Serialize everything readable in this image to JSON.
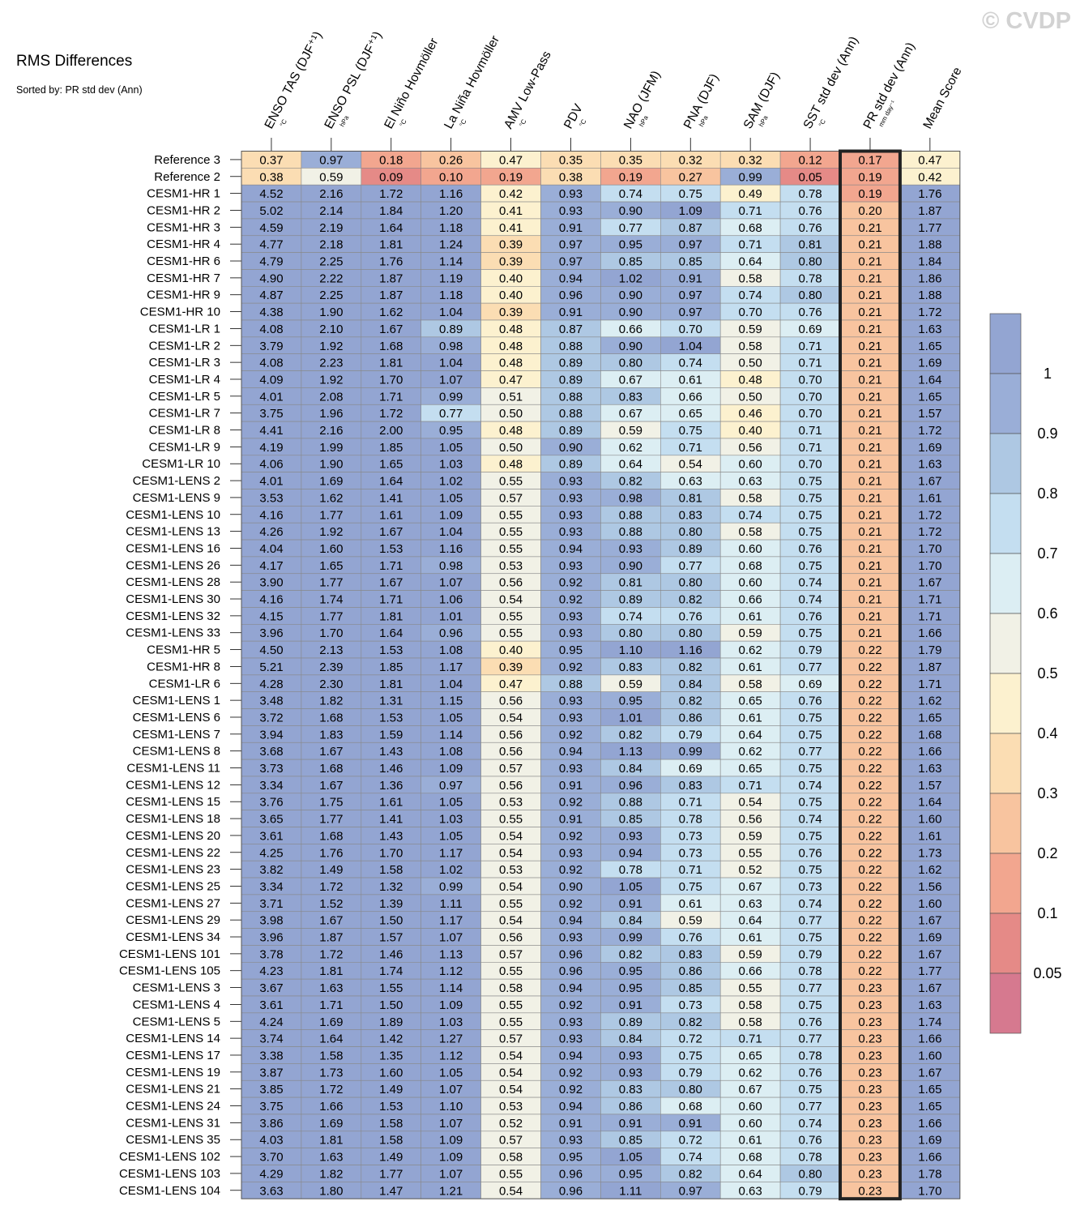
{
  "watermark": "© CVDP",
  "chart_data": {
    "type": "heatmap",
    "title": "RMS Differences",
    "subtitle": "Sorted by: PR std dev (Ann)",
    "columns": [
      {
        "name": "ENSO TAS (DJF⁺¹)",
        "unit": "°C"
      },
      {
        "name": "ENSO PSL (DJF⁺¹)",
        "unit": "hPa"
      },
      {
        "name": "El Niño Hovmöller",
        "unit": "°C"
      },
      {
        "name": "La Niña Hovmöller",
        "unit": "°C"
      },
      {
        "name": "AMV Low-Pass",
        "unit": "°C"
      },
      {
        "name": "PDV",
        "unit": "°C"
      },
      {
        "name": "NAO (JFM)",
        "unit": "hPa"
      },
      {
        "name": "PNA (DJF)",
        "unit": "hPa"
      },
      {
        "name": "SAM (DJF)",
        "unit": "hPa"
      },
      {
        "name": "SST std dev (Ann)",
        "unit": "°C"
      },
      {
        "name": "PR std dev (Ann)",
        "unit": "mm day⁻¹"
      },
      {
        "name": "Mean Score",
        "unit": ""
      }
    ],
    "highlighted_column": "PR std dev (Ann)",
    "rows": [
      {
        "name": "Reference 3",
        "values": [
          0.37,
          0.97,
          0.18,
          0.26,
          0.47,
          0.35,
          0.35,
          0.32,
          0.32,
          0.12,
          0.17,
          0.47
        ]
      },
      {
        "name": "Reference 2",
        "values": [
          0.38,
          0.59,
          0.09,
          0.1,
          0.19,
          0.38,
          0.19,
          0.27,
          0.99,
          0.05,
          0.19,
          0.42
        ]
      },
      {
        "name": "CESM1-HR 1",
        "values": [
          4.52,
          2.16,
          1.72,
          1.16,
          0.42,
          0.93,
          0.74,
          0.75,
          0.49,
          0.78,
          0.19,
          1.76
        ]
      },
      {
        "name": "CESM1-HR 2",
        "values": [
          5.02,
          2.14,
          1.84,
          1.2,
          0.41,
          0.93,
          0.9,
          1.09,
          0.71,
          0.76,
          0.2,
          1.87
        ]
      },
      {
        "name": "CESM1-HR 3",
        "values": [
          4.59,
          2.19,
          1.64,
          1.18,
          0.41,
          0.91,
          0.77,
          0.87,
          0.68,
          0.76,
          0.21,
          1.77
        ]
      },
      {
        "name": "CESM1-HR 4",
        "values": [
          4.77,
          2.18,
          1.81,
          1.24,
          0.39,
          0.97,
          0.95,
          0.97,
          0.71,
          0.81,
          0.21,
          1.88
        ]
      },
      {
        "name": "CESM1-HR 6",
        "values": [
          4.79,
          2.25,
          1.76,
          1.14,
          0.39,
          0.97,
          0.85,
          0.85,
          0.64,
          0.8,
          0.21,
          1.84
        ]
      },
      {
        "name": "CESM1-HR 7",
        "values": [
          4.9,
          2.22,
          1.87,
          1.19,
          0.4,
          0.94,
          1.02,
          0.91,
          0.58,
          0.78,
          0.21,
          1.86
        ]
      },
      {
        "name": "CESM1-HR 9",
        "values": [
          4.87,
          2.25,
          1.87,
          1.18,
          0.4,
          0.96,
          0.9,
          0.97,
          0.74,
          0.8,
          0.21,
          1.88
        ]
      },
      {
        "name": "CESM1-HR 10",
        "values": [
          4.38,
          1.9,
          1.62,
          1.04,
          0.39,
          0.91,
          0.9,
          0.97,
          0.7,
          0.76,
          0.21,
          1.72
        ]
      },
      {
        "name": "CESM1-LR 1",
        "values": [
          4.08,
          2.1,
          1.67,
          0.89,
          0.48,
          0.87,
          0.66,
          0.7,
          0.59,
          0.69,
          0.21,
          1.63
        ]
      },
      {
        "name": "CESM1-LR 2",
        "values": [
          3.79,
          1.92,
          1.68,
          0.98,
          0.48,
          0.88,
          0.9,
          1.04,
          0.58,
          0.71,
          0.21,
          1.65
        ]
      },
      {
        "name": "CESM1-LR 3",
        "values": [
          4.08,
          2.23,
          1.81,
          1.04,
          0.48,
          0.89,
          0.8,
          0.74,
          0.5,
          0.71,
          0.21,
          1.69
        ]
      },
      {
        "name": "CESM1-LR 4",
        "values": [
          4.09,
          1.92,
          1.7,
          1.07,
          0.47,
          0.89,
          0.67,
          0.61,
          0.48,
          0.7,
          0.21,
          1.64
        ]
      },
      {
        "name": "CESM1-LR 5",
        "values": [
          4.01,
          2.08,
          1.71,
          0.99,
          0.51,
          0.88,
          0.83,
          0.66,
          0.5,
          0.7,
          0.21,
          1.65
        ]
      },
      {
        "name": "CESM1-LR 7",
        "values": [
          3.75,
          1.96,
          1.72,
          0.77,
          0.5,
          0.88,
          0.67,
          0.65,
          0.46,
          0.7,
          0.21,
          1.57
        ]
      },
      {
        "name": "CESM1-LR 8",
        "values": [
          4.41,
          2.16,
          2.0,
          0.95,
          0.48,
          0.89,
          0.59,
          0.75,
          0.4,
          0.71,
          0.21,
          1.72
        ]
      },
      {
        "name": "CESM1-LR 9",
        "values": [
          4.19,
          1.99,
          1.85,
          1.05,
          0.5,
          0.9,
          0.62,
          0.71,
          0.56,
          0.71,
          0.21,
          1.69
        ]
      },
      {
        "name": "CESM1-LR 10",
        "values": [
          4.06,
          1.9,
          1.65,
          1.03,
          0.48,
          0.89,
          0.64,
          0.54,
          0.6,
          0.7,
          0.21,
          1.63
        ]
      },
      {
        "name": "CESM1-LENS 2",
        "values": [
          4.01,
          1.69,
          1.64,
          1.02,
          0.55,
          0.93,
          0.82,
          0.63,
          0.63,
          0.75,
          0.21,
          1.67
        ]
      },
      {
        "name": "CESM1-LENS 9",
        "values": [
          3.53,
          1.62,
          1.41,
          1.05,
          0.57,
          0.93,
          0.98,
          0.81,
          0.58,
          0.75,
          0.21,
          1.61
        ]
      },
      {
        "name": "CESM1-LENS 10",
        "values": [
          4.16,
          1.77,
          1.61,
          1.09,
          0.55,
          0.93,
          0.88,
          0.83,
          0.74,
          0.75,
          0.21,
          1.72
        ]
      },
      {
        "name": "CESM1-LENS 13",
        "values": [
          4.26,
          1.92,
          1.67,
          1.04,
          0.55,
          0.93,
          0.88,
          0.8,
          0.58,
          0.75,
          0.21,
          1.72
        ]
      },
      {
        "name": "CESM1-LENS 16",
        "values": [
          4.04,
          1.6,
          1.53,
          1.16,
          0.55,
          0.94,
          0.93,
          0.89,
          0.6,
          0.76,
          0.21,
          1.7
        ]
      },
      {
        "name": "CESM1-LENS 26",
        "values": [
          4.17,
          1.65,
          1.71,
          0.98,
          0.53,
          0.93,
          0.9,
          0.77,
          0.68,
          0.75,
          0.21,
          1.7
        ]
      },
      {
        "name": "CESM1-LENS 28",
        "values": [
          3.9,
          1.77,
          1.67,
          1.07,
          0.56,
          0.92,
          0.81,
          0.8,
          0.6,
          0.74,
          0.21,
          1.67
        ]
      },
      {
        "name": "CESM1-LENS 30",
        "values": [
          4.16,
          1.74,
          1.71,
          1.06,
          0.54,
          0.92,
          0.89,
          0.82,
          0.66,
          0.74,
          0.21,
          1.71
        ]
      },
      {
        "name": "CESM1-LENS 32",
        "values": [
          4.15,
          1.77,
          1.81,
          1.01,
          0.55,
          0.93,
          0.74,
          0.76,
          0.61,
          0.76,
          0.21,
          1.71
        ]
      },
      {
        "name": "CESM1-LENS 33",
        "values": [
          3.96,
          1.7,
          1.64,
          0.96,
          0.55,
          0.93,
          0.8,
          0.8,
          0.59,
          0.75,
          0.21,
          1.66
        ]
      },
      {
        "name": "CESM1-HR 5",
        "values": [
          4.5,
          2.13,
          1.53,
          1.08,
          0.4,
          0.95,
          1.1,
          1.16,
          0.62,
          0.79,
          0.22,
          1.79
        ]
      },
      {
        "name": "CESM1-HR 8",
        "values": [
          5.21,
          2.39,
          1.85,
          1.17,
          0.39,
          0.92,
          0.83,
          0.82,
          0.61,
          0.77,
          0.22,
          1.87
        ]
      },
      {
        "name": "CESM1-LR 6",
        "values": [
          4.28,
          2.3,
          1.81,
          1.04,
          0.47,
          0.88,
          0.59,
          0.84,
          0.58,
          0.69,
          0.22,
          1.71
        ]
      },
      {
        "name": "CESM1-LENS 1",
        "values": [
          3.48,
          1.82,
          1.31,
          1.15,
          0.56,
          0.93,
          0.95,
          0.82,
          0.65,
          0.76,
          0.22,
          1.62
        ]
      },
      {
        "name": "CESM1-LENS 6",
        "values": [
          3.72,
          1.68,
          1.53,
          1.05,
          0.54,
          0.93,
          1.01,
          0.86,
          0.61,
          0.75,
          0.22,
          1.65
        ]
      },
      {
        "name": "CESM1-LENS 7",
        "values": [
          3.94,
          1.83,
          1.59,
          1.14,
          0.56,
          0.92,
          0.82,
          0.79,
          0.64,
          0.75,
          0.22,
          1.68
        ]
      },
      {
        "name": "CESM1-LENS 8",
        "values": [
          3.68,
          1.67,
          1.43,
          1.08,
          0.56,
          0.94,
          1.13,
          0.99,
          0.62,
          0.77,
          0.22,
          1.66
        ]
      },
      {
        "name": "CESM1-LENS 11",
        "values": [
          3.73,
          1.68,
          1.46,
          1.09,
          0.57,
          0.93,
          0.84,
          0.69,
          0.65,
          0.75,
          0.22,
          1.63
        ]
      },
      {
        "name": "CESM1-LENS 12",
        "values": [
          3.34,
          1.67,
          1.36,
          0.97,
          0.56,
          0.91,
          0.96,
          0.83,
          0.71,
          0.74,
          0.22,
          1.57
        ]
      },
      {
        "name": "CESM1-LENS 15",
        "values": [
          3.76,
          1.75,
          1.61,
          1.05,
          0.53,
          0.92,
          0.88,
          0.71,
          0.54,
          0.75,
          0.22,
          1.64
        ]
      },
      {
        "name": "CESM1-LENS 18",
        "values": [
          3.65,
          1.77,
          1.41,
          1.03,
          0.55,
          0.91,
          0.85,
          0.78,
          0.56,
          0.74,
          0.22,
          1.6
        ]
      },
      {
        "name": "CESM1-LENS 20",
        "values": [
          3.61,
          1.68,
          1.43,
          1.05,
          0.54,
          0.92,
          0.93,
          0.73,
          0.59,
          0.75,
          0.22,
          1.61
        ]
      },
      {
        "name": "CESM1-LENS 22",
        "values": [
          4.25,
          1.76,
          1.7,
          1.17,
          0.54,
          0.93,
          0.94,
          0.73,
          0.55,
          0.76,
          0.22,
          1.73
        ]
      },
      {
        "name": "CESM1-LENS 23",
        "values": [
          3.82,
          1.49,
          1.58,
          1.02,
          0.53,
          0.92,
          0.78,
          0.71,
          0.52,
          0.75,
          0.22,
          1.62
        ]
      },
      {
        "name": "CESM1-LENS 25",
        "values": [
          3.34,
          1.72,
          1.32,
          0.99,
          0.54,
          0.9,
          1.05,
          0.75,
          0.67,
          0.73,
          0.22,
          1.56
        ]
      },
      {
        "name": "CESM1-LENS 27",
        "values": [
          3.71,
          1.52,
          1.39,
          1.11,
          0.55,
          0.92,
          0.91,
          0.61,
          0.63,
          0.74,
          0.22,
          1.6
        ]
      },
      {
        "name": "CESM1-LENS 29",
        "values": [
          3.98,
          1.67,
          1.5,
          1.17,
          0.54,
          0.94,
          0.84,
          0.59,
          0.64,
          0.77,
          0.22,
          1.67
        ]
      },
      {
        "name": "CESM1-LENS 34",
        "values": [
          3.96,
          1.87,
          1.57,
          1.07,
          0.56,
          0.93,
          0.99,
          0.76,
          0.61,
          0.75,
          0.22,
          1.69
        ]
      },
      {
        "name": "CESM1-LENS 101",
        "values": [
          3.78,
          1.72,
          1.46,
          1.13,
          0.57,
          0.96,
          0.82,
          0.83,
          0.59,
          0.79,
          0.22,
          1.67
        ]
      },
      {
        "name": "CESM1-LENS 105",
        "values": [
          4.23,
          1.81,
          1.74,
          1.12,
          0.55,
          0.96,
          0.95,
          0.86,
          0.66,
          0.78,
          0.22,
          1.77
        ]
      },
      {
        "name": "CESM1-LENS 3",
        "values": [
          3.67,
          1.63,
          1.55,
          1.14,
          0.58,
          0.94,
          0.95,
          0.85,
          0.55,
          0.77,
          0.23,
          1.67
        ]
      },
      {
        "name": "CESM1-LENS 4",
        "values": [
          3.61,
          1.71,
          1.5,
          1.09,
          0.55,
          0.92,
          0.91,
          0.73,
          0.58,
          0.75,
          0.23,
          1.63
        ]
      },
      {
        "name": "CESM1-LENS 5",
        "values": [
          4.24,
          1.69,
          1.89,
          1.03,
          0.55,
          0.93,
          0.89,
          0.82,
          0.58,
          0.76,
          0.23,
          1.74
        ]
      },
      {
        "name": "CESM1-LENS 14",
        "values": [
          3.74,
          1.64,
          1.42,
          1.27,
          0.57,
          0.93,
          0.84,
          0.72,
          0.71,
          0.77,
          0.23,
          1.66
        ]
      },
      {
        "name": "CESM1-LENS 17",
        "values": [
          3.38,
          1.58,
          1.35,
          1.12,
          0.54,
          0.94,
          0.93,
          0.75,
          0.65,
          0.78,
          0.23,
          1.6
        ]
      },
      {
        "name": "CESM1-LENS 19",
        "values": [
          3.87,
          1.73,
          1.6,
          1.05,
          0.54,
          0.92,
          0.93,
          0.79,
          0.62,
          0.76,
          0.23,
          1.67
        ]
      },
      {
        "name": "CESM1-LENS 21",
        "values": [
          3.85,
          1.72,
          1.49,
          1.07,
          0.54,
          0.92,
          0.83,
          0.8,
          0.67,
          0.75,
          0.23,
          1.65
        ]
      },
      {
        "name": "CESM1-LENS 24",
        "values": [
          3.75,
          1.66,
          1.53,
          1.1,
          0.53,
          0.94,
          0.86,
          0.68,
          0.6,
          0.77,
          0.23,
          1.65
        ]
      },
      {
        "name": "CESM1-LENS 31",
        "values": [
          3.86,
          1.69,
          1.58,
          1.07,
          0.52,
          0.91,
          0.91,
          0.91,
          0.6,
          0.74,
          0.23,
          1.66
        ]
      },
      {
        "name": "CESM1-LENS 35",
        "values": [
          4.03,
          1.81,
          1.58,
          1.09,
          0.57,
          0.93,
          0.85,
          0.72,
          0.61,
          0.76,
          0.23,
          1.69
        ]
      },
      {
        "name": "CESM1-LENS 102",
        "values": [
          3.7,
          1.63,
          1.49,
          1.09,
          0.58,
          0.95,
          1.05,
          0.74,
          0.68,
          0.78,
          0.23,
          1.66
        ]
      },
      {
        "name": "CESM1-LENS 103",
        "values": [
          4.29,
          1.82,
          1.77,
          1.07,
          0.55,
          0.96,
          0.95,
          0.82,
          0.64,
          0.8,
          0.23,
          1.78
        ]
      },
      {
        "name": "CESM1-LENS 104",
        "values": [
          3.63,
          1.8,
          1.47,
          1.21,
          0.54,
          0.96,
          1.11,
          0.97,
          0.63,
          0.79,
          0.23,
          1.7
        ]
      }
    ],
    "colorbar": {
      "boundaries": [
        0.05,
        0.1,
        0.2,
        0.3,
        0.4,
        0.5,
        0.6,
        0.7,
        0.8,
        0.9,
        1
      ],
      "tick_labels": [
        "1",
        "0.9",
        "0.8",
        "0.7",
        "0.6",
        "0.5",
        "0.4",
        "0.3",
        "0.2",
        "0.1",
        "0.05"
      ],
      "colors": [
        "#d6798f",
        "#e58a87",
        "#f2a68f",
        "#f8c49f",
        "#fbddb3",
        "#fcf1cf",
        "#f1f1e6",
        "#dceef3",
        "#c4def0",
        "#aec8e3",
        "#9aaed7",
        "#93a5d2"
      ]
    }
  }
}
